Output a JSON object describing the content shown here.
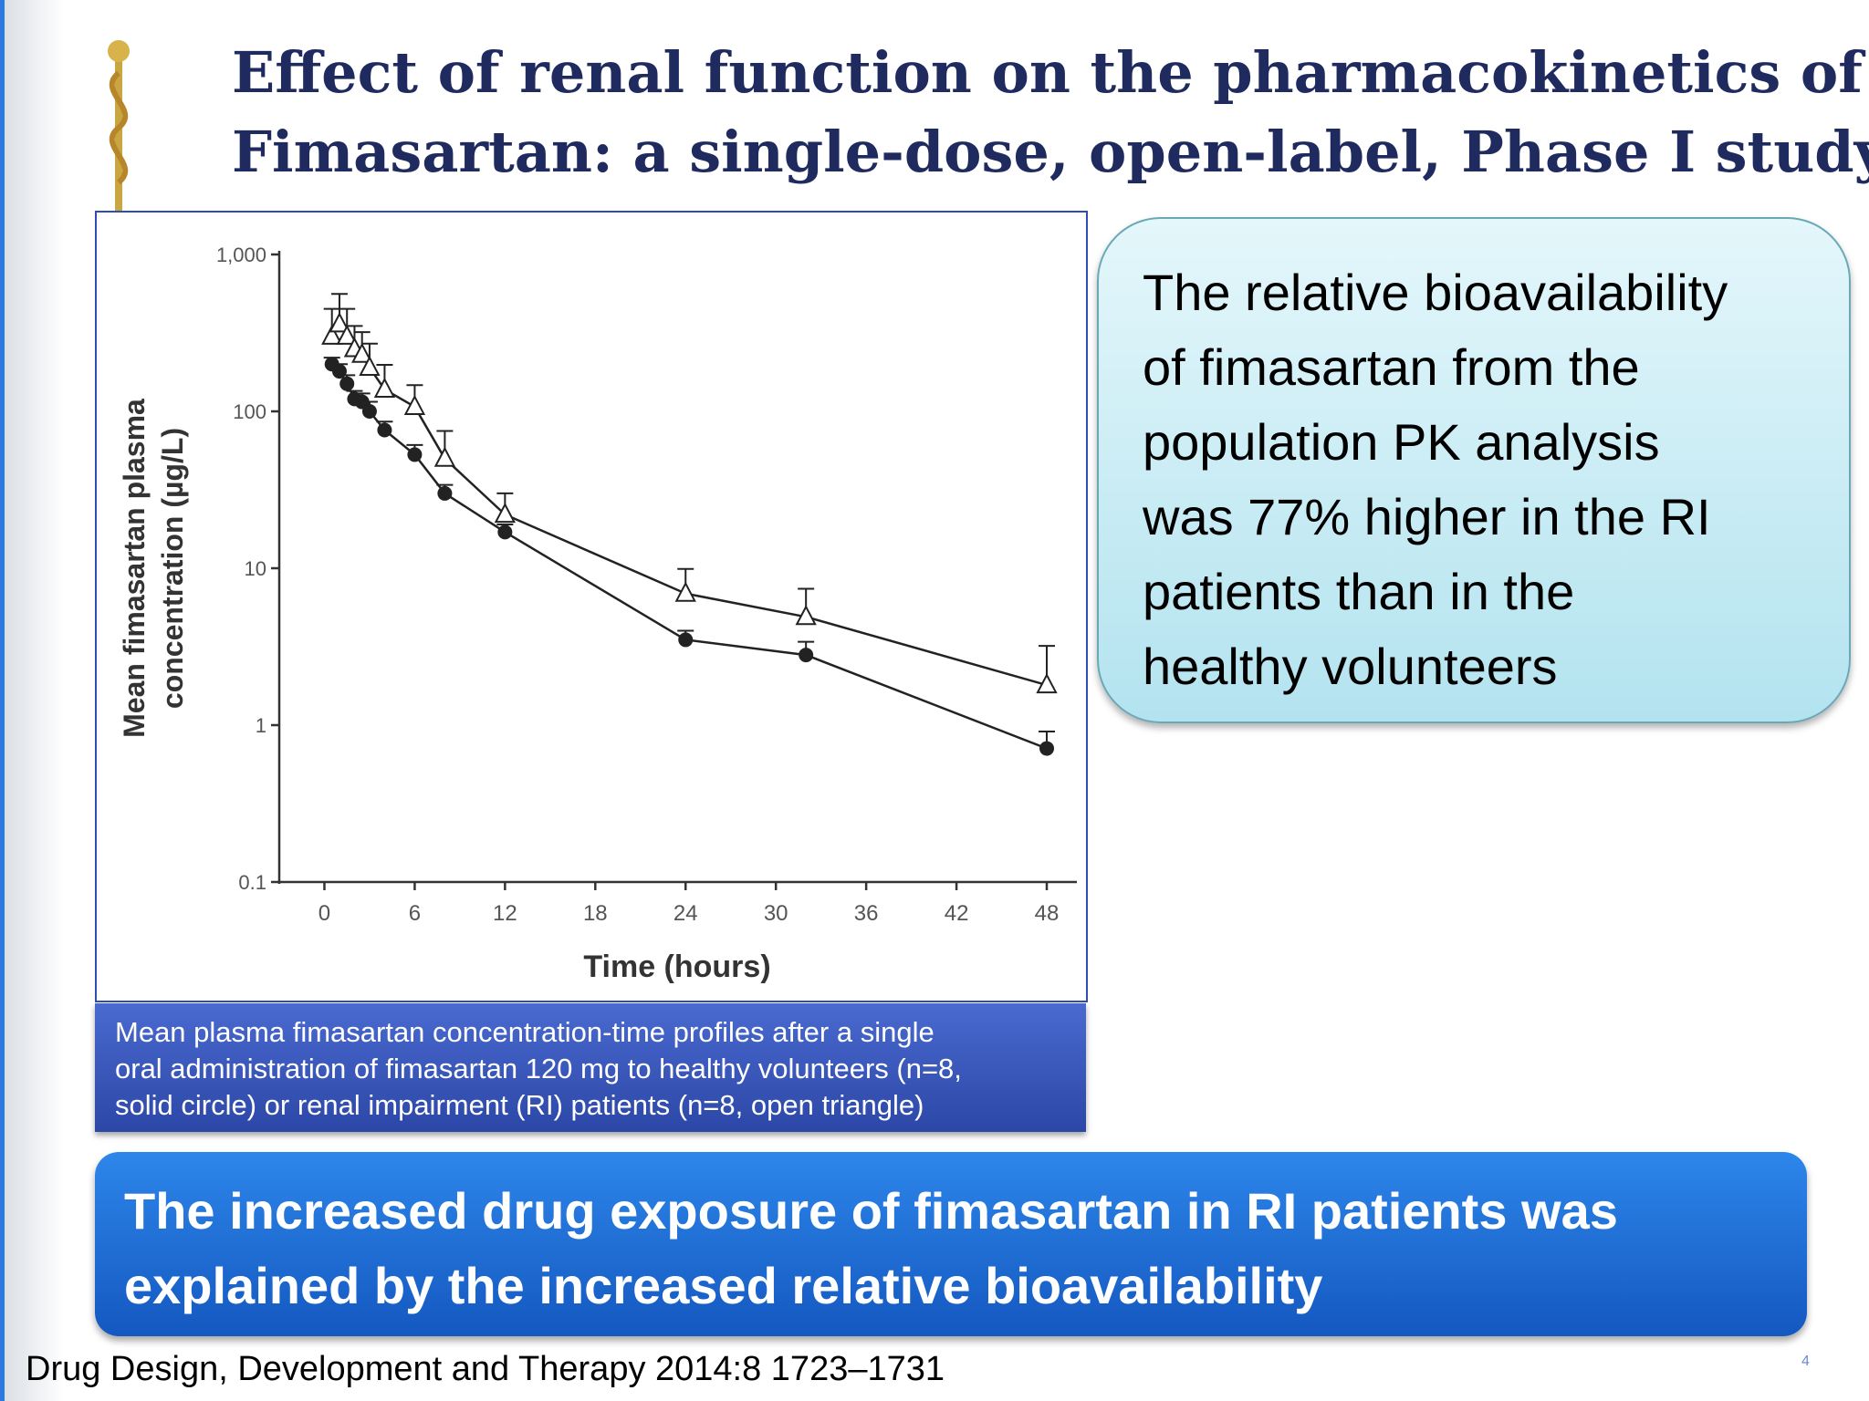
{
  "title": [
    "Effect of renal function on the pharmacokinetics of",
    "Fimasartan: a single-dose, open-label, Phase I study"
  ],
  "chart_data": {
    "type": "line",
    "log_y": true,
    "ylabel": [
      "Mean fimasartan plasma",
      "concentration (µg/L)"
    ],
    "xlabel": "Time (hours)",
    "xlim": [
      -3,
      50
    ],
    "xticks": [
      0,
      6,
      12,
      18,
      24,
      30,
      36,
      42,
      48
    ],
    "ylim": [
      0.1,
      1000
    ],
    "yticks": [
      {
        "value": 1000,
        "label": "1,000"
      },
      100,
      10,
      1,
      0.1
    ],
    "series": [
      {
        "color": "#222222",
        "marker": "circle",
        "x": [
          0.5,
          1,
          1.5,
          2,
          2.5,
          3,
          4,
          6,
          8,
          12,
          24,
          32,
          48
        ],
        "values": [
          200,
          180,
          150,
          120,
          115,
          100,
          76,
          53,
          30,
          17,
          3.5,
          2.8,
          0.71
        ],
        "errors": [
          20,
          20,
          20,
          15,
          15,
          15,
          10,
          8,
          4,
          2,
          0.5,
          0.6,
          0.2
        ]
      },
      {
        "color": "#222222",
        "marker": "triangle",
        "x": [
          0.5,
          1,
          1.5,
          2,
          2.5,
          3,
          4,
          6,
          8,
          12,
          24,
          32,
          48
        ],
        "values": [
          300,
          360,
          300,
          250,
          230,
          190,
          138,
          107,
          50,
          22,
          6.9,
          4.9,
          1.8
        ],
        "errors": [
          150,
          200,
          150,
          100,
          90,
          80,
          60,
          40,
          25,
          8,
          3,
          2.5,
          1.4
        ]
      }
    ]
  },
  "caption": [
    "Mean plasma fimasartan concentration-time profiles after a single",
    "oral administration of fimasartan 120 mg to healthy volunteers (n=8,",
    "solid circle) or renal impairment (RI) patients (n=8, open triangle)"
  ],
  "callout": [
    "The relative bioavailability",
    "of fimasartan from the",
    "population PK analysis",
    "was 77% higher in the RI",
    "patients than in the",
    "healthy volunteers"
  ],
  "banner": [
    "The increased drug exposure of fimasartan in RI patients was",
    "explained by the increased relative bioavailability"
  ],
  "footer": "Drug Design, Development and Therapy 2014:8 1723–1731",
  "page_number": "4"
}
